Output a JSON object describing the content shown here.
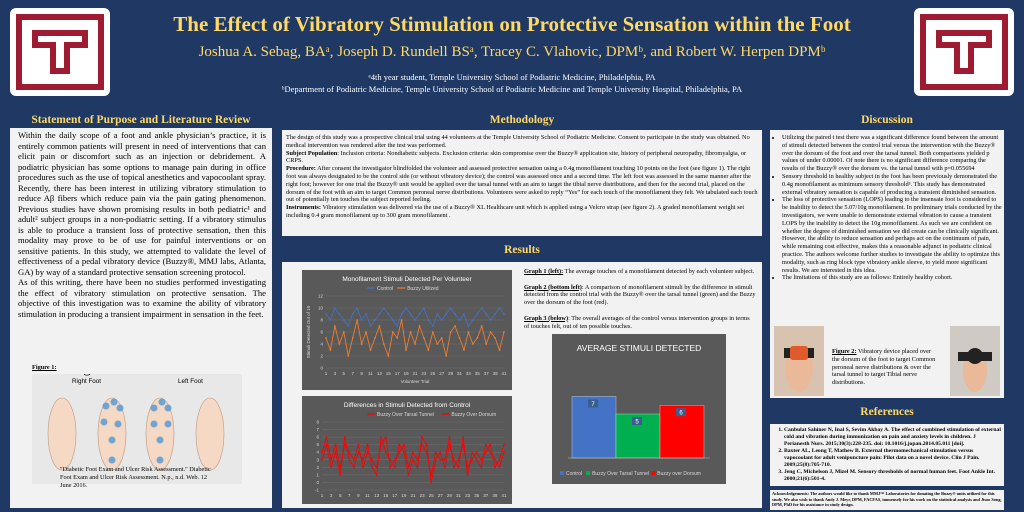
{
  "header": {
    "title": "The Effect of Vibratory Stimulation on Protective Sensation within the Foot",
    "authors": "Joshua A. Sebag, BAᵃ, Joseph D. Rundell BSᵃ, Tracey C. Vlahovic, DPMᵇ, and Robert W. Herpen DPMᵇ",
    "affiliation_a": "ᵃ4th year student, Temple University School of Podiatric Medicine, Philadelphia, PA",
    "affiliation_b": "ᵇDepartment of Podiatric Medicine, Temple University School of Podiatric Medicine and Temple University Hospital, Philadelphia, PA"
  },
  "purpose": {
    "heading": "Statement of Purpose and Literature Review",
    "p1": "Within the daily scope of a foot and ankle physician’s practice, it is entirely common patients will present in need of interventions that can elicit pain or discomfort such as an injection or debridement. A podiatric physician has some options to manage pain during in office procedures such as the use of topical anesthetics and vapocoolant spray. Recently, there has been interest in utilizing vibratory stimulation to reduce Aβ fibers which reduce pain via the pain gating phenomenon. Previous studies have shown promising results in both pediatric¹ and adult² subject groups in a non-podiatric setting. If a vibratory stimulus is able to produce a transient loss of protective sensation, then this modality may prove to be of use for painful interventions or on sensitive patients. In this study, we attempted to validate the level of effectiveness of a pedal vibratory device (Buzzy®, MMJ labs, Atlanta, GA) by way of a standard protective sensation screening protocol.",
    "p2": "As of this writing, there have been no studies performed investigating the effect of vibratory stimulation on protective sensation. The objective of this investigation was to examine the ability of vibratory stimulation in producing a transient impairment in sensation in the feet.",
    "figure_label": "Figure 1:",
    "right_foot": "Right Foot",
    "left_foot": "Left Foot",
    "caption": "\"Diabetic Foot Exam and Ulcer Risk Assessment.\" Diabetic Foot Exam and Ulcer Risk Assessment. N.p., n.d. Web. 12 June 2016."
  },
  "methodology": {
    "heading": "Methodology",
    "intro": "The design of this study was a prospective clinical trial using 44 volunteers at the Temple University School of Podiatric Medicine. Consent to participate in the study was obtained. No medical intervention was rendered after the test was performed.",
    "population_label": "Subject Population",
    "population": ": Inclusion criteria: Nondiabetic subjects. Exclusion criteria: skin compromise over the Buzzy® application site, history of peripheral neuropathy, fibromyalgia, or CRPS.",
    "procedure_label": "Procedure:",
    "procedure": " After consent the investigator blindfolded the volunteer and assessed protective sensation using a 0.4g monofilament touching 10 points on the foot (see figure 1). The right foot was always designated to be the control side (or without vibratory device); the control was assessed once and a second time. The left foot was assessed in the same manner after the right foot; however for one trial the Buzzy® unit would be applied over the tarsal tunnel with an aim to target the tibial nerve distributions, and then for the second trial, placed on the dorsum of the foot with an aim to target Common peroneal nerve distributions. Volunteers were asked to reply “Yes” for each touch of the monofilament they felt. We tabulated each touch out of potentially ten touches the subject reported feeling.",
    "instruments_label": "Instruments:",
    "instruments": " Vibratory stimulation was delivered via the use of a Buzzy® XL Healthcare unit which is applied using a Velcro strap (see figure 2). A graded monofilament weight set including 0.4 gram monofilament up to 300 gram monofilament ."
  },
  "results": {
    "heading": "Results",
    "g1_label": "Graph 1 (left):",
    "g1": " The average touches of a monofilament detected by each volunteer subject.",
    "g2_label": "Graph 2 (bottom left)",
    "g2": ": A comparison of monofilament stimuli by the difference in stimuli detected from the control trial with the Buzzy® over the tarsal tunnel (green) and the Buzzy over the dorsum of the foot (red).",
    "g3_label": "Graph 3 (below)",
    "g3": ": The overall averages of the control versus intervention groups in terms of touches felt, out of ten possible touches."
  },
  "discussion": {
    "heading": "Discussion",
    "bullets": [
      "Utilizing the paired t test there was a significant difference found between the amount of stimuli detected between the control trial versus the intervention with the Buzzy® over the dorsum of the foot and over the tarsal tunnel. Both comparisons yielded p values of under 0.00001. Of note there is no significant difference comparing the results of the Buzzy® over the dorsum vs. the tarsal tunnel with p=0.055694",
      "Sensory threshold in healthy subject in the foot has been previously demonstrated the 0.4g monofilament as minimum sensory threshold³. This study has demonstrated external vibratory sensation is capable of producing a transient diminished sensation.",
      "The loss of protective sensation (LOPS) leading to the insensate foot is considered to be inability to detect the 5.07/10g monofilament. In preliminary trials conducted by the investigators, we were unable to demonstrate external vibration to cause a transient LOPS by the inability to detect the 10g monofilament. As such we are confident on whether the degree of diminished sensation we did create can be clinically significant. However, the ability to reduce sensation and perhaps act on the continuum of pain, while remaining cost effective, makes this a reasonable adjunct in podiatric clinical practice. The authors welcome further studies to investigate the ability to optimize this modality, such as ring block type vibratory ankle sleeve, to yield more significant results. We are interested in this idea.",
      "The limitations of this study are as follows: Entirely healthy cohort."
    ],
    "fig2_label": "Figure 2:",
    "fig2": " Vibratory device placed over the dorsum of the foot to target Common peroneal nerve distributions & over the tarsal tunnel to target Tibial nerve distributions."
  },
  "references": {
    "heading": "References",
    "items": [
      "Canbulat Sahiner N, Inal S, Sevim Akbay A. The effect of combined stimulation of external cold and vibration during immunization on pain and anxiety levels in children. J Perianesth Nurs. 2015;30(3):228-235. doi: 10.1016/j.jopan.2014.05.011 [doi].",
      "Baxter AL, Leong T, Mathew B. External thermomechanical stimulation versus vapocoolant for adult venipuncture pain: Pilot data on a novel device. Clin J Pain. 2009;25(8):705-710.",
      "Jeng C, Michelson J, Mizel M. Sensory thresholds of normal human feet. Foot Ankle Int. 2000;21(6):501-4."
    ],
    "ack": "Acknowledgements: The authors would like to thank MMJ™ Laboratories for donating the Buzzy® units utilized for this study. We also wish to thank Andy J. Meyr, DPM, FACFAS, immensely for his work on the statistical analysis and Jisoo Song, DPM, PhD for his assistance in study design."
  },
  "colors": {
    "navy": "#1f3864",
    "gold": "#ffd966",
    "control": "#4472c4",
    "buzzy": "#ed7d31",
    "green": "#00b050",
    "red": "#ff0000"
  },
  "chart_data": [
    {
      "type": "line",
      "title": "Monofilament Stimuli Detected Per Volunteer",
      "xlabel": "Volunteer Trial",
      "ylabel": "Stimuli Detected Out of 10",
      "ylim": [
        0,
        12
      ],
      "yticks": [
        0,
        2,
        4,
        6,
        8,
        10,
        12
      ],
      "x": [
        1,
        2,
        3,
        4,
        5,
        6,
        7,
        8,
        9,
        10,
        11,
        12,
        13,
        14,
        15,
        16,
        17,
        18,
        19,
        20,
        21,
        22,
        23,
        24,
        25,
        26,
        27,
        28,
        29,
        30,
        31,
        32,
        33,
        34,
        35,
        36,
        37,
        38,
        39,
        40,
        41
      ],
      "xticks": [
        1,
        3,
        5,
        7,
        9,
        11,
        13,
        15,
        17,
        19,
        21,
        23,
        25,
        27,
        29,
        31,
        33,
        35,
        37,
        39,
        41
      ],
      "legend": "top",
      "series": [
        {
          "name": "Control",
          "values": [
            9,
            8,
            10,
            9,
            8,
            7,
            9,
            10,
            8,
            9,
            7,
            8,
            9,
            10,
            9,
            8,
            7,
            9,
            10,
            9,
            8,
            9,
            10,
            8,
            7,
            9,
            8,
            9,
            10,
            9,
            8,
            9,
            7,
            8,
            9,
            10,
            9,
            8,
            9,
            10,
            9
          ]
        },
        {
          "name": "Buzzy Utilized",
          "values": [
            5,
            3,
            7,
            4,
            6,
            2,
            5,
            8,
            4,
            6,
            3,
            5,
            7,
            4,
            2,
            6,
            5,
            8,
            3,
            6,
            4,
            7,
            5,
            3,
            6,
            4,
            5,
            2,
            6,
            7,
            5,
            3,
            6,
            4,
            5,
            7,
            4,
            6,
            5,
            3,
            6
          ]
        }
      ]
    },
    {
      "type": "line",
      "title": "Differences in Stimuli Detected from Control",
      "ylim": [
        -1,
        8
      ],
      "yticks": [
        -1,
        0,
        1,
        2,
        3,
        4,
        5,
        6,
        7,
        8
      ],
      "x": [
        1,
        2,
        3,
        4,
        5,
        6,
        7,
        8,
        9,
        10,
        11,
        12,
        13,
        14,
        15,
        16,
        17,
        18,
        19,
        20,
        21,
        22,
        23,
        24,
        25,
        26,
        27,
        28,
        29,
        30,
        31,
        32,
        33,
        34,
        35,
        36,
        37,
        38,
        39,
        40,
        41
      ],
      "xticks": [
        1,
        3,
        5,
        7,
        9,
        11,
        13,
        15,
        17,
        19,
        21,
        23,
        25,
        27,
        29,
        31,
        33,
        35,
        37,
        39,
        41
      ],
      "legend": "top",
      "series": [
        {
          "name": "Buzzy Over Tarsal Tunnel",
          "values": [
            3,
            5,
            2,
            4,
            1,
            6,
            3,
            2,
            4,
            3,
            5,
            2,
            1,
            6,
            4,
            3,
            2,
            5,
            4,
            1,
            3,
            2,
            6,
            5,
            0,
            3,
            4,
            2,
            5,
            3,
            2,
            6,
            1,
            4,
            3,
            2,
            5,
            4,
            3,
            2,
            4
          ]
        },
        {
          "name": "Buzzy Over Dorsum",
          "values": [
            4,
            6,
            3,
            5,
            2,
            5,
            4,
            3,
            5,
            2,
            4,
            3,
            2,
            5,
            6,
            2,
            3,
            4,
            5,
            2,
            4,
            3,
            5,
            4,
            1,
            4,
            3,
            3,
            6,
            2,
            3,
            5,
            2,
            3,
            4,
            3,
            4,
            5,
            2,
            3,
            5
          ]
        }
      ]
    },
    {
      "type": "bar",
      "title": "AVERAGE STIMULI DETECTED",
      "categories": [
        "Control",
        "Buzzy Over Tarsal Tunnel",
        "Buzzy over Dorsum"
      ],
      "values": [
        7,
        5,
        6
      ],
      "value_labels": [
        "7",
        "5",
        "6"
      ],
      "ylim": [
        0,
        10
      ],
      "legend": "bottom"
    }
  ]
}
